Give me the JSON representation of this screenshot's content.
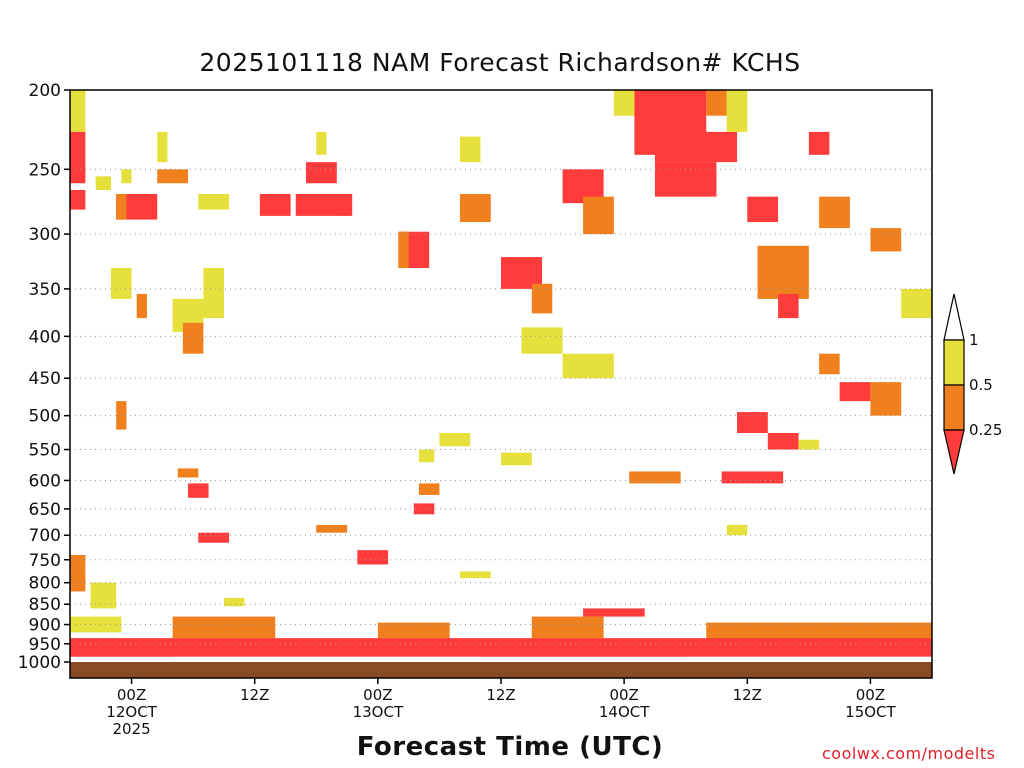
{
  "chart_data": {
    "type": "heatmap",
    "title": "2025101118 NAM Forecast Richardson# KCHS",
    "xlabel": "Forecast Time (UTC)",
    "ylabel": "",
    "credit": "coolwx.com/modelts",
    "y_scale": "log",
    "ylim": [
      1000,
      200
    ],
    "y_ticks": [
      1000,
      950,
      900,
      850,
      800,
      750,
      700,
      650,
      600,
      550,
      500,
      450,
      400,
      350,
      300,
      250,
      200
    ],
    "y_gridlines": [
      950,
      900,
      850,
      800,
      750,
      700,
      650,
      600,
      550,
      500,
      450,
      400,
      350,
      300,
      250
    ],
    "x_range_hours": [
      0,
      84
    ],
    "x_ticks": [
      {
        "hour": 6,
        "lines": [
          "00Z",
          "12OCT",
          "2025"
        ]
      },
      {
        "hour": 18,
        "lines": [
          "12Z"
        ]
      },
      {
        "hour": 30,
        "lines": [
          "00Z",
          "13OCT"
        ]
      },
      {
        "hour": 42,
        "lines": [
          "12Z"
        ]
      },
      {
        "hour": 54,
        "lines": [
          "00Z",
          "14OCT"
        ]
      },
      {
        "hour": 66,
        "lines": [
          "12Z"
        ]
      },
      {
        "hour": 78,
        "lines": [
          "00Z",
          "15OCT"
        ]
      }
    ],
    "legend": {
      "placement": "right",
      "ticks": [
        "1",
        "0.5",
        "0.25"
      ],
      "bins": [
        {
          "range": "<0.25",
          "color": "#ff3b3b"
        },
        {
          "range": "0.25-0.5",
          "color": "#f0801e"
        },
        {
          "range": "0.5-1",
          "color": "#e6e03c"
        },
        {
          "range": ">1",
          "color": "#ffffff"
        }
      ]
    },
    "colors": {
      "low": "#ff3b3b",
      "mid": "#f0801e",
      "high": "#e6e03c",
      "ground": "#8b4a26"
    },
    "cells": [
      {
        "t0": 0,
        "t1": 1.5,
        "p0": 200,
        "p1": 225,
        "bin": "0.5-1"
      },
      {
        "t0": 0,
        "t1": 1.5,
        "p0": 225,
        "p1": 260,
        "bin": "<0.25"
      },
      {
        "t0": 0,
        "t1": 1.5,
        "p0": 265,
        "p1": 280,
        "bin": "<0.25"
      },
      {
        "t0": 2.5,
        "t1": 4,
        "p0": 255,
        "p1": 265,
        "bin": "0.5-1"
      },
      {
        "t0": 5,
        "t1": 6,
        "p0": 250,
        "p1": 260,
        "bin": "0.5-1"
      },
      {
        "t0": 4.5,
        "t1": 8.5,
        "p0": 268,
        "p1": 288,
        "bin": "<0.25"
      },
      {
        "t0": 4.5,
        "t1": 5.5,
        "p0": 268,
        "p1": 288,
        "bin": "0.25-0.5"
      },
      {
        "t0": 8.5,
        "t1": 11.5,
        "p0": 250,
        "p1": 260,
        "bin": "0.25-0.5"
      },
      {
        "t0": 8.5,
        "t1": 9.5,
        "p0": 225,
        "p1": 245,
        "bin": "0.5-1"
      },
      {
        "t0": 12.5,
        "t1": 15.5,
        "p0": 268,
        "p1": 280,
        "bin": "0.5-1"
      },
      {
        "t0": 18.5,
        "t1": 21.5,
        "p0": 268,
        "p1": 285,
        "bin": "<0.25"
      },
      {
        "t0": 22,
        "t1": 27,
        "p0": 268,
        "p1": 285,
        "bin": "<0.25"
      },
      {
        "t0": 23,
        "t1": 26,
        "p0": 245,
        "p1": 260,
        "bin": "<0.25"
      },
      {
        "t0": 24,
        "t1": 25,
        "p0": 225,
        "p1": 240,
        "bin": "0.5-1"
      },
      {
        "t0": 26.5,
        "t1": 27.5,
        "p0": 268,
        "p1": 285,
        "bin": "<0.25"
      },
      {
        "t0": 32,
        "t1": 35,
        "p0": 298,
        "p1": 330,
        "bin": "<0.25"
      },
      {
        "t0": 32,
        "t1": 33,
        "p0": 298,
        "p1": 330,
        "bin": "0.25-0.5"
      },
      {
        "t0": 38,
        "t1": 41,
        "p0": 268,
        "p1": 290,
        "bin": "0.25-0.5"
      },
      {
        "t0": 38,
        "t1": 40,
        "p0": 228,
        "p1": 245,
        "bin": "0.5-1"
      },
      {
        "t0": 42,
        "t1": 46,
        "p0": 320,
        "p1": 350,
        "bin": "<0.25"
      },
      {
        "t0": 45,
        "t1": 47,
        "p0": 345,
        "p1": 375,
        "bin": "0.25-0.5"
      },
      {
        "t0": 48,
        "t1": 52,
        "p0": 250,
        "p1": 275,
        "bin": "<0.25"
      },
      {
        "t0": 50,
        "t1": 53,
        "p0": 270,
        "p1": 300,
        "bin": "0.25-0.5"
      },
      {
        "t0": 53,
        "t1": 55,
        "p0": 200,
        "p1": 215,
        "bin": "0.5-1"
      },
      {
        "t0": 55,
        "t1": 62,
        "p0": 200,
        "p1": 240,
        "bin": "<0.25"
      },
      {
        "t0": 57,
        "t1": 65,
        "p0": 225,
        "p1": 245,
        "bin": "<0.25"
      },
      {
        "t0": 57,
        "t1": 63,
        "p0": 245,
        "p1": 270,
        "bin": "<0.25"
      },
      {
        "t0": 62,
        "t1": 64,
        "p0": 200,
        "p1": 215,
        "bin": "0.25-0.5"
      },
      {
        "t0": 64,
        "t1": 66,
        "p0": 200,
        "p1": 225,
        "bin": "0.5-1"
      },
      {
        "t0": 66,
        "t1": 69,
        "p0": 270,
        "p1": 290,
        "bin": "<0.25"
      },
      {
        "t0": 67,
        "t1": 72,
        "p0": 310,
        "p1": 360,
        "bin": "0.25-0.5"
      },
      {
        "t0": 72,
        "t1": 74,
        "p0": 225,
        "p1": 240,
        "bin": "<0.25"
      },
      {
        "t0": 73,
        "t1": 76,
        "p0": 270,
        "p1": 295,
        "bin": "0.25-0.5"
      },
      {
        "t0": 78,
        "t1": 81,
        "p0": 295,
        "p1": 315,
        "bin": "0.25-0.5"
      },
      {
        "t0": 81,
        "t1": 84,
        "p0": 350,
        "p1": 380,
        "bin": "0.5-1"
      },
      {
        "t0": 4,
        "t1": 6,
        "p0": 330,
        "p1": 360,
        "bin": "0.5-1"
      },
      {
        "t0": 6.5,
        "t1": 7.5,
        "p0": 355,
        "p1": 380,
        "bin": "0.25-0.5"
      },
      {
        "t0": 10,
        "t1": 13,
        "p0": 360,
        "p1": 395,
        "bin": "0.5-1"
      },
      {
        "t0": 11,
        "t1": 13,
        "p0": 385,
        "p1": 420,
        "bin": "0.25-0.5"
      },
      {
        "t0": 13,
        "t1": 15,
        "p0": 330,
        "p1": 380,
        "bin": "0.5-1"
      },
      {
        "t0": 44,
        "t1": 48,
        "p0": 390,
        "p1": 420,
        "bin": "0.5-1"
      },
      {
        "t0": 48,
        "t1": 53,
        "p0": 420,
        "p1": 450,
        "bin": "0.5-1"
      },
      {
        "t0": 69,
        "t1": 71,
        "p0": 355,
        "p1": 380,
        "bin": "<0.25"
      },
      {
        "t0": 73,
        "t1": 75,
        "p0": 420,
        "p1": 445,
        "bin": "0.25-0.5"
      },
      {
        "t0": 75,
        "t1": 78,
        "p0": 455,
        "p1": 480,
        "bin": "<0.25"
      },
      {
        "t0": 78,
        "t1": 81,
        "p0": 455,
        "p1": 500,
        "bin": "0.25-0.5"
      },
      {
        "t0": 65,
        "t1": 68,
        "p0": 495,
        "p1": 525,
        "bin": "<0.25"
      },
      {
        "t0": 68,
        "t1": 71,
        "p0": 525,
        "p1": 550,
        "bin": "<0.25"
      },
      {
        "t0": 71,
        "t1": 73,
        "p0": 535,
        "p1": 550,
        "bin": "0.5-1"
      },
      {
        "t0": 4.5,
        "t1": 5.5,
        "p0": 480,
        "p1": 520,
        "bin": "0.25-0.5"
      },
      {
        "t0": 36,
        "t1": 39,
        "p0": 525,
        "p1": 545,
        "bin": "0.5-1"
      },
      {
        "t0": 42,
        "t1": 45,
        "p0": 555,
        "p1": 575,
        "bin": "0.5-1"
      },
      {
        "t0": 34,
        "t1": 35.5,
        "p0": 550,
        "p1": 570,
        "bin": "0.5-1"
      },
      {
        "t0": 54.5,
        "t1": 59.5,
        "p0": 585,
        "p1": 605,
        "bin": "0.25-0.5"
      },
      {
        "t0": 63.5,
        "t1": 69.5,
        "p0": 585,
        "p1": 605,
        "bin": "<0.25"
      },
      {
        "t0": 10.5,
        "t1": 12.5,
        "p0": 580,
        "p1": 595,
        "bin": "0.25-0.5"
      },
      {
        "t0": 11.5,
        "t1": 13.5,
        "p0": 605,
        "p1": 630,
        "bin": "<0.25"
      },
      {
        "t0": 34,
        "t1": 36,
        "p0": 605,
        "p1": 625,
        "bin": "0.25-0.5"
      },
      {
        "t0": 33.5,
        "t1": 35.5,
        "p0": 640,
        "p1": 660,
        "bin": "<0.25"
      },
      {
        "t0": 12.5,
        "t1": 15.5,
        "p0": 695,
        "p1": 715,
        "bin": "<0.25"
      },
      {
        "t0": 24,
        "t1": 27,
        "p0": 680,
        "p1": 695,
        "bin": "0.25-0.5"
      },
      {
        "t0": 28,
        "t1": 31,
        "p0": 730,
        "p1": 760,
        "bin": "<0.25"
      },
      {
        "t0": 38,
        "t1": 41,
        "p0": 775,
        "p1": 790,
        "bin": "0.5-1"
      },
      {
        "t0": 64,
        "t1": 66,
        "p0": 680,
        "p1": 700,
        "bin": "0.5-1"
      },
      {
        "t0": 0,
        "t1": 1.5,
        "p0": 740,
        "p1": 820,
        "bin": "0.25-0.5"
      },
      {
        "t0": 2,
        "t1": 4.5,
        "p0": 800,
        "p1": 860,
        "bin": "0.5-1"
      },
      {
        "t0": 15,
        "t1": 17,
        "p0": 835,
        "p1": 855,
        "bin": "0.5-1"
      },
      {
        "t0": 50,
        "t1": 56,
        "p0": 860,
        "p1": 880,
        "bin": "<0.25"
      },
      {
        "t0": 0,
        "t1": 5,
        "p0": 880,
        "p1": 920,
        "bin": "0.5-1"
      },
      {
        "t0": 10,
        "t1": 20,
        "p0": 880,
        "p1": 935,
        "bin": "0.25-0.5"
      },
      {
        "t0": 30,
        "t1": 37,
        "p0": 895,
        "p1": 935,
        "bin": "0.25-0.5"
      },
      {
        "t0": 45,
        "t1": 52,
        "p0": 880,
        "p1": 935,
        "bin": "0.25-0.5"
      },
      {
        "t0": 62,
        "t1": 84,
        "p0": 895,
        "p1": 940,
        "bin": "0.25-0.5"
      },
      {
        "t0": 0,
        "t1": 84,
        "p0": 935,
        "p1": 985,
        "bin": "<0.25"
      },
      {
        "t0": 0,
        "t1": 10,
        "p0": 960,
        "p1": 985,
        "bin": "<0.25"
      },
      {
        "t0": 40,
        "t1": 60,
        "p0": 940,
        "p1": 985,
        "bin": "<0.25"
      }
    ]
  }
}
